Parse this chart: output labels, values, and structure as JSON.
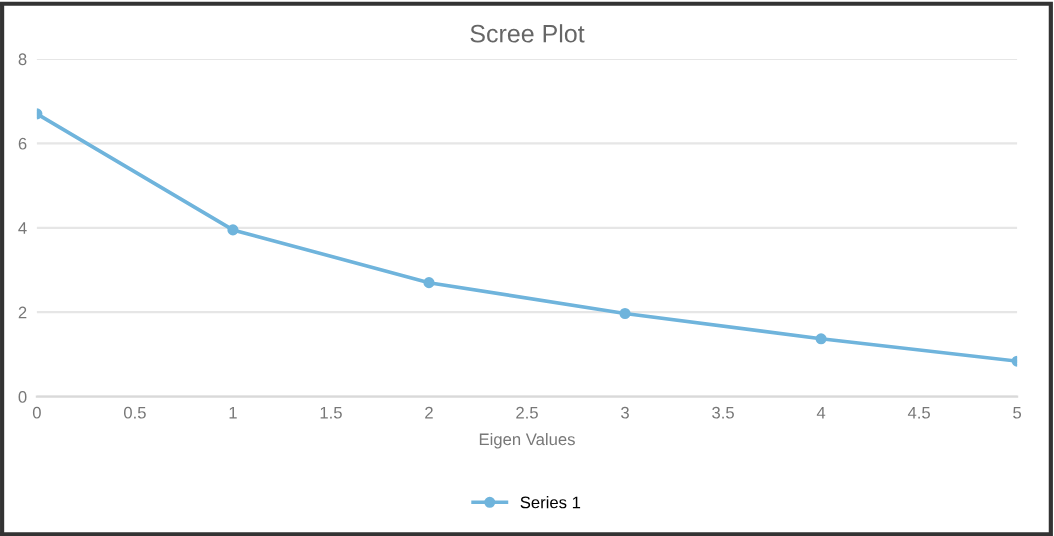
{
  "chart_data": {
    "type": "line",
    "title": "Scree Plot",
    "xlabel": "Eigen Values",
    "x": [
      0,
      1,
      2,
      3,
      4,
      5
    ],
    "series": [
      {
        "name": "Series 1",
        "color": "#6fb4dc",
        "values": [
          6.7,
          3.95,
          2.7,
          1.97,
          1.37,
          0.84
        ]
      }
    ],
    "xlim": [
      0,
      5
    ],
    "xticks": [
      0,
      0.5,
      1,
      1.5,
      2,
      2.5,
      3,
      3.5,
      4,
      4.5,
      5
    ],
    "ylim": [
      0,
      8
    ],
    "yticks": [
      0,
      2,
      4,
      6,
      8
    ],
    "grid": "y",
    "legend": "bottom",
    "marker": "circle",
    "line_style": "solid"
  }
}
